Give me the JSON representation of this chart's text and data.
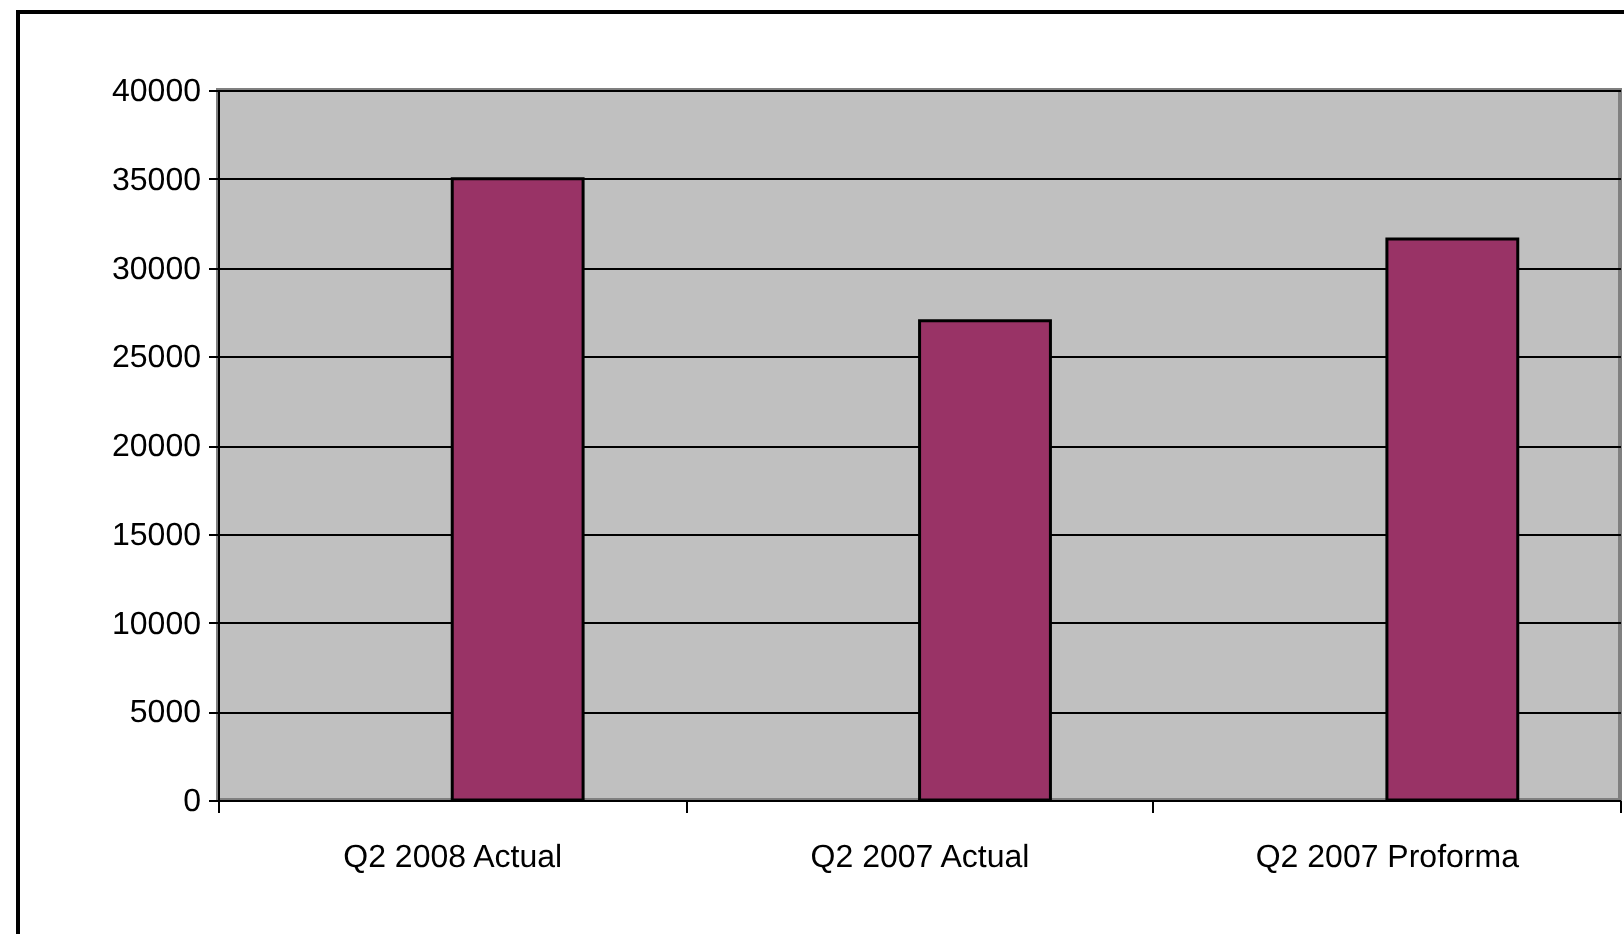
{
  "chart_data": {
    "type": "bar",
    "categories": [
      "Q2 2008 Actual",
      "Q2 2007 Actual",
      "Q2 2007 Proforma"
    ],
    "values": [
      35000,
      27000,
      31600
    ],
    "color": "#993366",
    "ylim": [
      0,
      40000
    ],
    "yticks": [
      0,
      5000,
      10000,
      15000,
      20000,
      25000,
      30000,
      35000,
      40000
    ],
    "grid": "y"
  }
}
